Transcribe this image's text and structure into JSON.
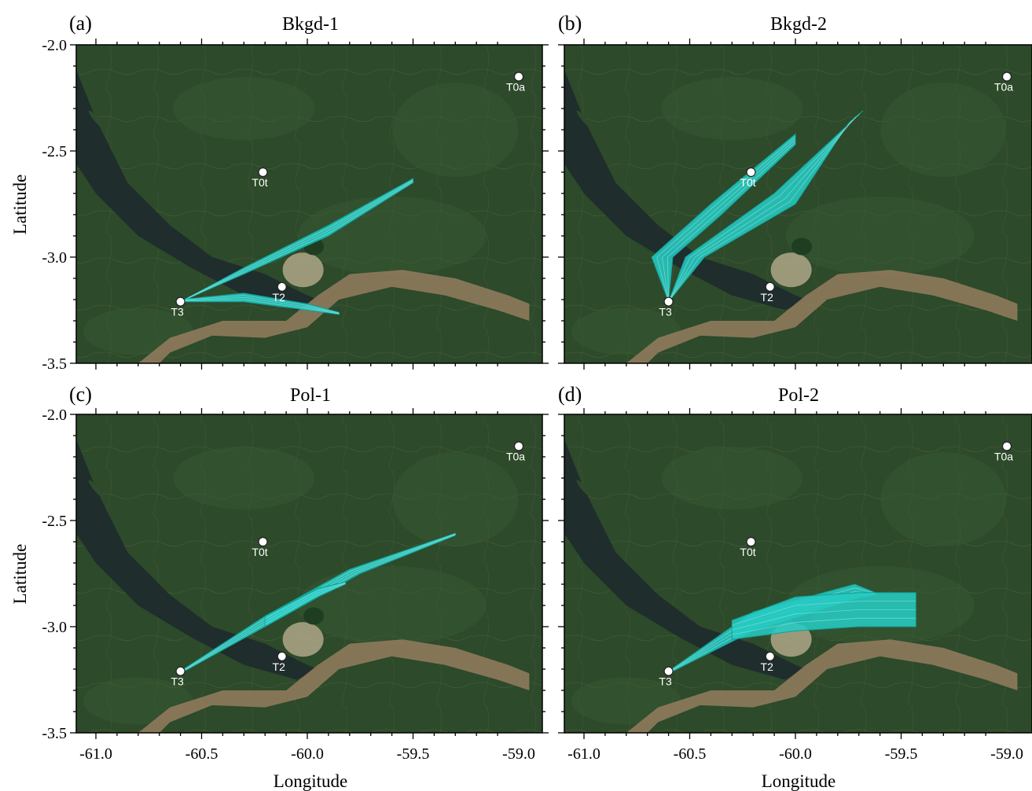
{
  "figure": {
    "xlabel": "Longitude",
    "ylabel": "Latitude",
    "xlim": [
      -61.1,
      -59.0
    ],
    "ylim": [
      -3.5,
      -2.0
    ],
    "xticks": [
      -61.0,
      -60.5,
      -60.0,
      -59.5,
      -59.0
    ],
    "xtick_labels": [
      "-61.0",
      "-60.5",
      "-60.0",
      "-59.5",
      "-59.0"
    ],
    "yticks": [
      -2.0,
      -2.5,
      -3.0,
      -3.5
    ],
    "ytick_labels": [
      "-2.0",
      "-2.5",
      "-3.0",
      "-3.5"
    ],
    "colors": {
      "plume": "#27c9c2",
      "plume_edge": "#0e9f99",
      "forest": "#2d4a2a",
      "river_dark": "#1f2d2c",
      "river_muddy": "#8f7a5c",
      "city": "#b8ac90",
      "site_marker": "#ffffff"
    }
  },
  "sites": [
    {
      "name": "T0a",
      "lon": -59.0,
      "lat": -2.15
    },
    {
      "name": "T0t",
      "lon": -60.21,
      "lat": -2.6
    },
    {
      "name": "T2",
      "lon": -60.12,
      "lat": -3.14
    },
    {
      "name": "T3",
      "lon": -60.6,
      "lat": -3.21
    }
  ],
  "panels": [
    {
      "letter": "(a)",
      "title": "Bkgd-1",
      "plumes": [
        {
          "upper": [
            [
              -60.6,
              -3.21
            ],
            [
              -60.3,
              -3.05
            ],
            [
              -59.9,
              -2.85
            ],
            [
              -59.5,
              -2.63
            ]
          ],
          "lower": [
            [
              -60.6,
              -3.21
            ],
            [
              -60.3,
              -3.08
            ],
            [
              -59.9,
              -2.9
            ],
            [
              -59.5,
              -2.65
            ]
          ]
        },
        {
          "upper": [
            [
              -60.6,
              -3.2
            ],
            [
              -60.3,
              -3.17
            ],
            [
              -60.0,
              -3.22
            ],
            [
              -59.85,
              -3.26
            ]
          ],
          "lower": [
            [
              -60.6,
              -3.21
            ],
            [
              -60.3,
              -3.21
            ],
            [
              -60.0,
              -3.25
            ],
            [
              -59.85,
              -3.27
            ]
          ]
        }
      ]
    },
    {
      "letter": "(b)",
      "title": "Bkgd-2",
      "plumes": [
        {
          "upper": [
            [
              -60.6,
              -3.21
            ],
            [
              -60.68,
              -3.0
            ],
            [
              -60.4,
              -2.75
            ],
            [
              -60.0,
              -2.42
            ]
          ],
          "lower": [
            [
              -60.6,
              -3.21
            ],
            [
              -60.58,
              -3.0
            ],
            [
              -60.35,
              -2.8
            ],
            [
              -60.0,
              -2.47
            ]
          ]
        },
        {
          "upper": [
            [
              -60.6,
              -3.21
            ],
            [
              -60.52,
              -3.0
            ],
            [
              -60.1,
              -2.7
            ],
            [
              -59.68,
              -2.31
            ]
          ],
          "lower": [
            [
              -60.6,
              -3.21
            ],
            [
              -60.43,
              -3.0
            ],
            [
              -60.0,
              -2.75
            ],
            [
              -59.75,
              -2.37
            ]
          ]
        }
      ]
    },
    {
      "letter": "(c)",
      "title": "Pol-1",
      "plumes": [
        {
          "upper": [
            [
              -60.6,
              -3.21
            ],
            [
              -60.2,
              -2.95
            ],
            [
              -59.8,
              -2.73
            ],
            [
              -59.3,
              -2.56
            ]
          ],
          "lower": [
            [
              -60.6,
              -3.22
            ],
            [
              -60.2,
              -3.0
            ],
            [
              -59.75,
              -2.75
            ],
            [
              -59.3,
              -2.57
            ]
          ]
        },
        {
          "upper": [
            [
              -60.2,
              -2.95
            ],
            [
              -59.95,
              -2.82
            ],
            [
              -59.82,
              -2.79
            ]
          ],
          "lower": [
            [
              -60.2,
              -3.0
            ],
            [
              -59.95,
              -2.86
            ],
            [
              -59.82,
              -2.8
            ]
          ]
        }
      ]
    },
    {
      "letter": "(d)",
      "title": "Pol-2",
      "plumes": [
        {
          "upper": [
            [
              -60.6,
              -3.21
            ],
            [
              -60.2,
              -2.93
            ],
            [
              -59.72,
              -2.8
            ],
            [
              -59.62,
              -2.84
            ]
          ],
          "lower": [
            [
              -60.6,
              -3.22
            ],
            [
              -60.2,
              -3.02
            ],
            [
              -59.72,
              -2.87
            ],
            [
              -59.62,
              -2.85
            ]
          ]
        },
        {
          "upper": [
            [
              -60.3,
              -2.97
            ],
            [
              -60.0,
              -2.86
            ],
            [
              -59.7,
              -2.84
            ],
            [
              -59.43,
              -2.84
            ]
          ],
          "lower": [
            [
              -60.3,
              -3.06
            ],
            [
              -60.0,
              -3.02
            ],
            [
              -59.7,
              -3.0
            ],
            [
              -59.43,
              -3.0
            ]
          ]
        }
      ]
    }
  ]
}
